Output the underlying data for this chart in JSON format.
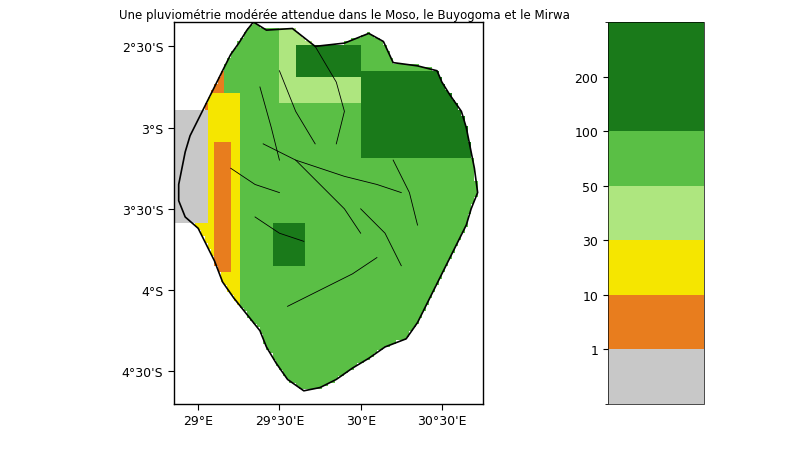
{
  "title": "Une pluviométrie modérée attendue dans le Moso, le Buyogoma et le Mirwa",
  "colorbar_levels": [
    1,
    10,
    30,
    50,
    100,
    200
  ],
  "colorbar_colors": [
    "#c8c8c8",
    "#e87d1e",
    "#f5e600",
    "#aee67f",
    "#5abf45",
    "#1a7a1a"
  ],
  "xlim": [
    28.85,
    30.75
  ],
  "ylim": [
    -4.7,
    -2.35
  ],
  "xticks": [
    29.0,
    29.5,
    30.0,
    30.5
  ],
  "yticks": [
    -2.5,
    -3.0,
    -3.5,
    -4.0,
    -4.5
  ],
  "xtick_labels": [
    "29°E",
    "29°30'E",
    "30°E",
    "30°30'E"
  ],
  "ytick_labels": [
    "2°30'S",
    "3°S",
    "3°30'S",
    "4°S",
    "4°30'S"
  ],
  "background_color": "#ffffff",
  "map_face_color": "#ffffff"
}
